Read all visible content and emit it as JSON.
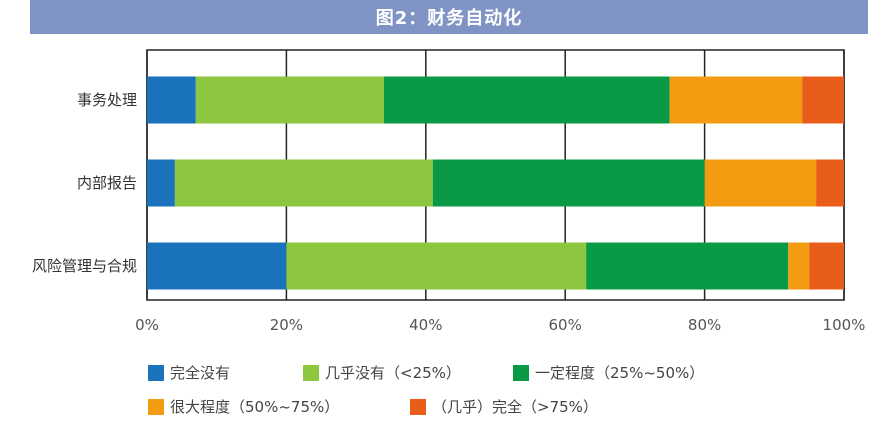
{
  "header": {
    "title": "图2：财务自动化"
  },
  "chart_data": {
    "type": "bar",
    "orientation": "horizontal",
    "stacked": true,
    "title": "图2：财务自动化",
    "categories": [
      "事务处理",
      "内部报告",
      "风险管理与合规"
    ],
    "series": [
      {
        "name": "完全没有",
        "color": "#1a72bb",
        "values": [
          7,
          4,
          20
        ]
      },
      {
        "name": "几乎没有（<25%）",
        "color": "#8dc63f",
        "values": [
          27,
          37,
          43
        ]
      },
      {
        "name": "一定程度（25%~50%）",
        "color": "#0a9a45",
        "values": [
          41,
          39,
          29
        ]
      },
      {
        "name": "很大程度（50%~75%）",
        "color": "#f39c12",
        "values": [
          19,
          16,
          3
        ]
      },
      {
        "name": "（几乎）完全（>75%）",
        "color": "#e85d1a",
        "values": [
          6,
          4,
          5
        ]
      }
    ],
    "xlim": [
      0,
      100
    ],
    "x_ticks": [
      "0%",
      "20%",
      "40%",
      "60%",
      "80%",
      "100%"
    ],
    "xlabel": "",
    "ylabel": "",
    "grid": true,
    "legend_position": "bottom"
  }
}
